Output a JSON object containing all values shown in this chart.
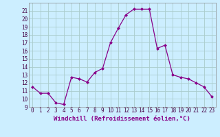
{
  "x": [
    0,
    1,
    2,
    3,
    4,
    5,
    6,
    7,
    8,
    9,
    10,
    11,
    12,
    13,
    14,
    15,
    16,
    17,
    18,
    19,
    20,
    21,
    22,
    23
  ],
  "y": [
    11.5,
    10.7,
    10.7,
    9.5,
    9.3,
    12.7,
    12.5,
    12.1,
    13.3,
    13.8,
    17.0,
    18.8,
    20.5,
    21.2,
    21.2,
    21.2,
    16.3,
    16.7,
    13.0,
    12.7,
    12.5,
    12.0,
    11.5,
    10.3
  ],
  "line_color": "#880088",
  "marker": "D",
  "marker_size": 2,
  "bg_color": "#cceeff",
  "grid_color": "#aacccc",
  "xlabel": "Windchill (Refroidissement éolien,°C)",
  "ylabel": "",
  "ylim": [
    9,
    22
  ],
  "xlim": [
    -0.5,
    23.5
  ],
  "yticks": [
    9,
    10,
    11,
    12,
    13,
    14,
    15,
    16,
    17,
    18,
    19,
    20,
    21
  ],
  "xticks": [
    0,
    1,
    2,
    3,
    4,
    5,
    6,
    7,
    8,
    9,
    10,
    11,
    12,
    13,
    14,
    15,
    16,
    17,
    18,
    19,
    20,
    21,
    22,
    23
  ],
  "tick_label_fontsize": 5.5,
  "xlabel_fontsize": 6.5
}
